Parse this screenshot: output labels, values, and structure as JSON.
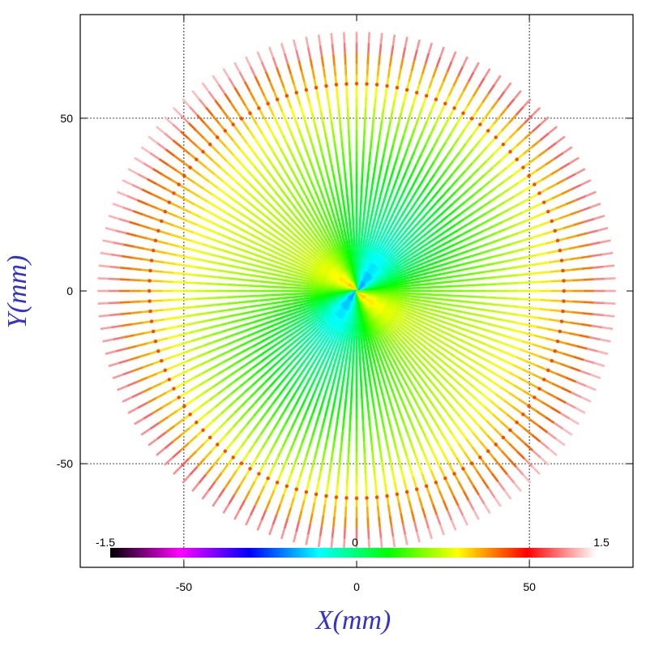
{
  "chart_data": {
    "type": "scatter",
    "title": "",
    "xlabel": "X(mm)",
    "ylabel": "Y(mm)",
    "xlim": [
      -80,
      80
    ],
    "ylim": [
      -80,
      80
    ],
    "xticks": [
      -50,
      0,
      50
    ],
    "yticks": [
      -50,
      0,
      50
    ],
    "grid": true,
    "grid_lines_at": [
      -50,
      50
    ],
    "spokes": 128,
    "outer_radius": 75,
    "ring_radius": 60,
    "colorbar": {
      "min": -1.5,
      "max": 1.5,
      "labels": [
        "-1.5",
        "0",
        "1.5"
      ],
      "stops": [
        "#000000",
        "#ff00ff",
        "#0000ff",
        "#00ffff",
        "#00ff00",
        "#ffff00",
        "#ff0000",
        "#ffffff"
      ]
    }
  },
  "colors": {
    "axis_title": "#3333cc",
    "frame": "#000000",
    "grid": "#000000"
  }
}
